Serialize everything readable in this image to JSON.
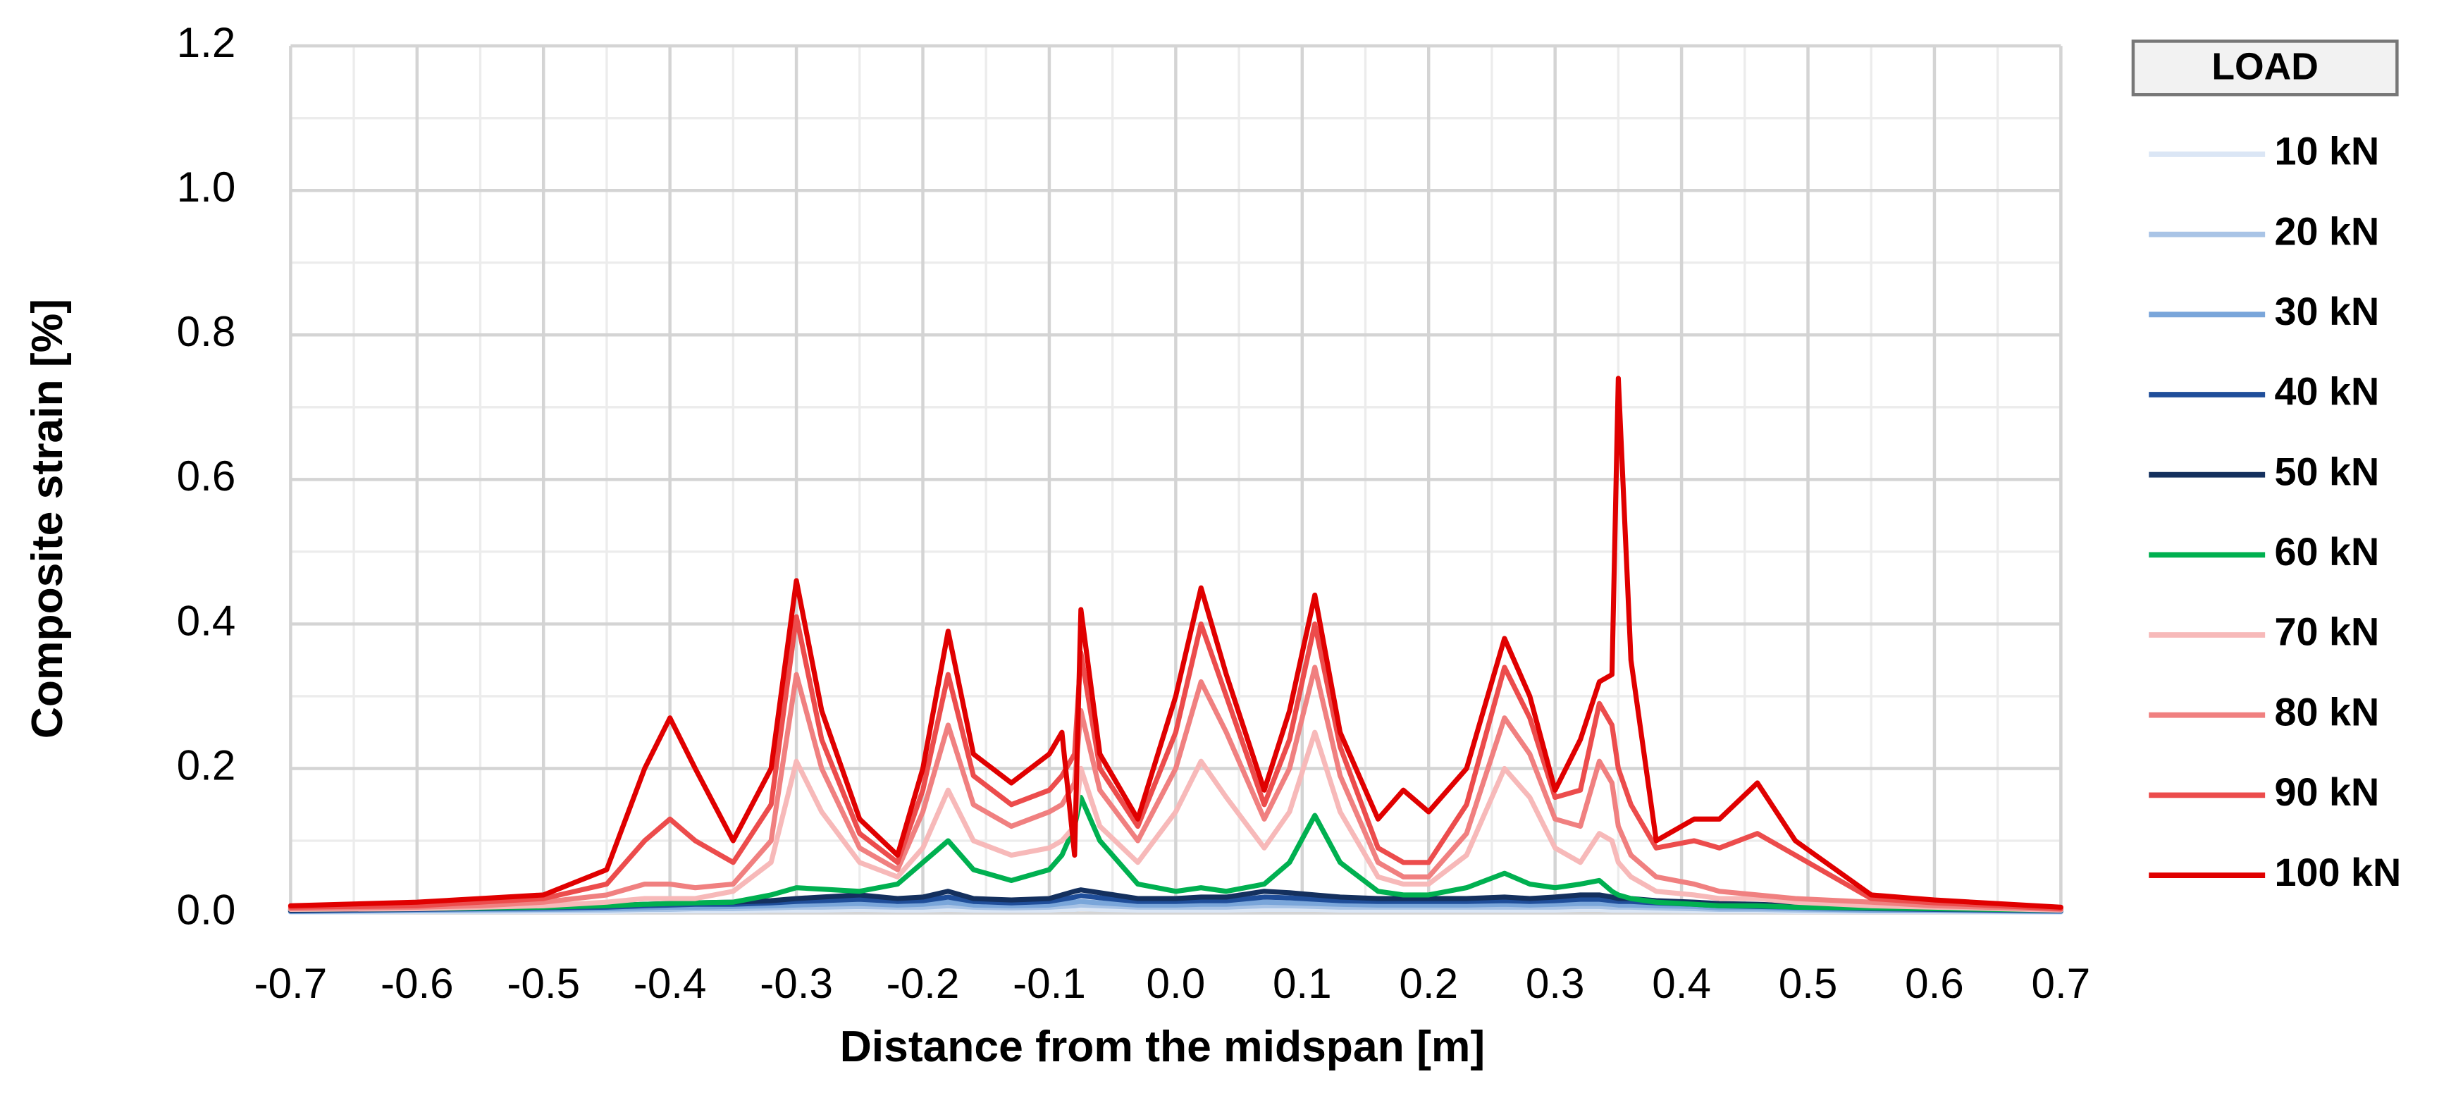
{
  "chart_data": {
    "type": "line",
    "x_label": "Distance from the midspan [m]",
    "y_label": "Composite strain [%]",
    "legend_title": "LOAD",
    "legend": "right",
    "grid": true,
    "xlim": [
      -0.7,
      0.7
    ],
    "ylim": [
      0,
      1.2
    ],
    "xticks": [
      -0.7,
      -0.6,
      -0.5,
      -0.4,
      -0.3,
      -0.2,
      -0.1,
      {
        "value": 0,
        "label": "0.0"
      },
      0.1,
      0.2,
      0.3,
      0.4,
      0.5,
      0.6,
      0.7
    ],
    "yticks": [
      {
        "value": 0,
        "label": "0.0"
      },
      0.2,
      0.4,
      0.6,
      0.8,
      {
        "value": 1,
        "label": "1.0"
      },
      1.2
    ],
    "x": [
      -0.7,
      -0.6,
      -0.55,
      -0.5,
      -0.45,
      -0.42,
      -0.4,
      -0.38,
      -0.35,
      -0.32,
      -0.3,
      -0.28,
      -0.25,
      -0.22,
      -0.2,
      -0.18,
      -0.16,
      -0.13,
      -0.1,
      -0.09,
      -0.08,
      -0.075,
      -0.06,
      -0.03,
      0,
      0.02,
      0.04,
      0.07,
      0.09,
      0.11,
      0.13,
      0.16,
      0.18,
      0.2,
      0.23,
      0.26,
      0.28,
      0.3,
      0.32,
      0.335,
      0.345,
      0.35,
      0.36,
      0.38,
      0.41,
      0.43,
      0.46,
      0.49,
      0.55,
      0.6,
      0.7
    ],
    "series": [
      {
        "name": "10 kN",
        "color": "#dbe6f5",
        "values": [
          0.001,
          0.002,
          0.002,
          0.002,
          0.002,
          0.003,
          0.003,
          0.003,
          0.003,
          0.004,
          0.004,
          0.004,
          0.005,
          0.004,
          0.004,
          0.005,
          0.004,
          0.004,
          0.004,
          0.005,
          0.005,
          0.006,
          0.005,
          0.004,
          0.004,
          0.004,
          0.004,
          0.005,
          0.005,
          0.005,
          0.004,
          0.004,
          0.004,
          0.004,
          0.004,
          0.004,
          0.004,
          0.004,
          0.005,
          0.005,
          0.004,
          0.004,
          0.004,
          0.004,
          0.003,
          0.003,
          0.003,
          0.002,
          0.002,
          0.002,
          0.001
        ]
      },
      {
        "name": "20 kN",
        "color": "#a9c4e6",
        "values": [
          0.002,
          0.003,
          0.003,
          0.004,
          0.004,
          0.005,
          0.005,
          0.006,
          0.006,
          0.007,
          0.008,
          0.008,
          0.009,
          0.008,
          0.008,
          0.01,
          0.008,
          0.007,
          0.008,
          0.009,
          0.01,
          0.011,
          0.01,
          0.008,
          0.008,
          0.008,
          0.008,
          0.01,
          0.01,
          0.009,
          0.008,
          0.008,
          0.008,
          0.008,
          0.008,
          0.008,
          0.008,
          0.008,
          0.009,
          0.009,
          0.008,
          0.008,
          0.008,
          0.007,
          0.006,
          0.005,
          0.005,
          0.004,
          0.003,
          0.003,
          0.002
        ]
      },
      {
        "name": "30 kN",
        "color": "#7aa6da",
        "values": [
          0.002,
          0.004,
          0.005,
          0.005,
          0.006,
          0.007,
          0.008,
          0.008,
          0.009,
          0.01,
          0.011,
          0.012,
          0.013,
          0.011,
          0.012,
          0.015,
          0.011,
          0.01,
          0.011,
          0.013,
          0.015,
          0.016,
          0.014,
          0.011,
          0.011,
          0.012,
          0.012,
          0.015,
          0.014,
          0.013,
          0.012,
          0.011,
          0.011,
          0.011,
          0.011,
          0.012,
          0.011,
          0.012,
          0.013,
          0.013,
          0.012,
          0.011,
          0.011,
          0.01,
          0.009,
          0.007,
          0.007,
          0.006,
          0.004,
          0.004,
          0.002
        ]
      },
      {
        "name": "40 kN",
        "color": "#1f4e9a",
        "values": [
          0.003,
          0.005,
          0.006,
          0.007,
          0.008,
          0.01,
          0.011,
          0.012,
          0.012,
          0.014,
          0.016,
          0.017,
          0.019,
          0.016,
          0.017,
          0.022,
          0.016,
          0.014,
          0.016,
          0.019,
          0.022,
          0.024,
          0.021,
          0.016,
          0.016,
          0.017,
          0.017,
          0.022,
          0.021,
          0.019,
          0.017,
          0.016,
          0.016,
          0.016,
          0.016,
          0.017,
          0.016,
          0.017,
          0.019,
          0.019,
          0.017,
          0.016,
          0.016,
          0.014,
          0.012,
          0.01,
          0.009,
          0.008,
          0.006,
          0.005,
          0.003
        ]
      },
      {
        "name": "50 kN",
        "color": "#14305e",
        "values": [
          0.004,
          0.006,
          0.007,
          0.008,
          0.01,
          0.012,
          0.013,
          0.014,
          0.015,
          0.017,
          0.02,
          0.022,
          0.025,
          0.02,
          0.022,
          0.03,
          0.02,
          0.018,
          0.02,
          0.025,
          0.03,
          0.032,
          0.028,
          0.02,
          0.02,
          0.022,
          0.022,
          0.03,
          0.028,
          0.025,
          0.022,
          0.02,
          0.02,
          0.02,
          0.02,
          0.022,
          0.02,
          0.022,
          0.025,
          0.025,
          0.022,
          0.02,
          0.02,
          0.017,
          0.015,
          0.013,
          0.012,
          0.01,
          0.007,
          0.006,
          0.004
        ]
      },
      {
        "name": "60 kN",
        "color": "#00b050",
        "values": [
          0.005,
          0.006,
          0.007,
          0.008,
          0.01,
          0.012,
          0.013,
          0.014,
          0.015,
          0.025,
          0.035,
          0.033,
          0.03,
          0.04,
          0.07,
          0.1,
          0.06,
          0.045,
          0.06,
          0.08,
          0.12,
          0.16,
          0.1,
          0.04,
          0.03,
          0.035,
          0.03,
          0.04,
          0.07,
          0.135,
          0.07,
          0.03,
          0.025,
          0.025,
          0.035,
          0.055,
          0.04,
          0.035,
          0.04,
          0.045,
          0.03,
          0.025,
          0.02,
          0.015,
          0.012,
          0.01,
          0.01,
          0.008,
          0.007,
          0.006,
          0.004
        ]
      },
      {
        "name": "70 kN",
        "color": "#f7b9b9",
        "values": [
          0.005,
          0.006,
          0.008,
          0.01,
          0.015,
          0.02,
          0.02,
          0.02,
          0.03,
          0.07,
          0.21,
          0.14,
          0.07,
          0.05,
          0.09,
          0.17,
          0.1,
          0.08,
          0.09,
          0.1,
          0.12,
          0.2,
          0.12,
          0.07,
          0.14,
          0.21,
          0.16,
          0.09,
          0.14,
          0.25,
          0.14,
          0.05,
          0.04,
          0.04,
          0.08,
          0.2,
          0.16,
          0.09,
          0.07,
          0.11,
          0.1,
          0.07,
          0.05,
          0.03,
          0.025,
          0.02,
          0.02,
          0.015,
          0.01,
          0.008,
          0.004
        ]
      },
      {
        "name": "80 kN",
        "color": "#f08080",
        "values": [
          0.006,
          0.008,
          0.01,
          0.015,
          0.025,
          0.04,
          0.04,
          0.035,
          0.04,
          0.1,
          0.33,
          0.2,
          0.09,
          0.06,
          0.14,
          0.26,
          0.15,
          0.12,
          0.14,
          0.15,
          0.18,
          0.28,
          0.17,
          0.1,
          0.2,
          0.32,
          0.25,
          0.13,
          0.2,
          0.34,
          0.19,
          0.07,
          0.05,
          0.05,
          0.11,
          0.27,
          0.22,
          0.13,
          0.12,
          0.21,
          0.18,
          0.12,
          0.08,
          0.05,
          0.04,
          0.03,
          0.025,
          0.02,
          0.015,
          0.01,
          0.005
        ]
      },
      {
        "name": "90 kN",
        "color": "#ec4c4c",
        "values": [
          0.008,
          0.01,
          0.015,
          0.02,
          0.04,
          0.1,
          0.13,
          0.1,
          0.07,
          0.15,
          0.41,
          0.24,
          0.11,
          0.07,
          0.17,
          0.33,
          0.19,
          0.15,
          0.17,
          0.19,
          0.22,
          0.36,
          0.2,
          0.12,
          0.25,
          0.4,
          0.3,
          0.15,
          0.24,
          0.4,
          0.23,
          0.09,
          0.07,
          0.07,
          0.15,
          0.34,
          0.27,
          0.16,
          0.17,
          0.29,
          0.26,
          0.2,
          0.15,
          0.09,
          0.1,
          0.09,
          0.11,
          0.08,
          0.02,
          0.014,
          0.006
        ]
      },
      {
        "name": "100 kN",
        "color": "#e00000",
        "values": [
          0.01,
          0.015,
          0.02,
          0.025,
          0.06,
          0.2,
          0.27,
          0.2,
          0.1,
          0.2,
          0.46,
          0.28,
          0.13,
          0.08,
          0.2,
          0.39,
          0.22,
          0.18,
          0.22,
          0.25,
          0.08,
          0.42,
          0.22,
          0.13,
          0.3,
          0.45,
          0.33,
          0.17,
          0.28,
          0.44,
          0.25,
          0.13,
          0.17,
          0.14,
          0.2,
          0.38,
          0.3,
          0.17,
          0.24,
          0.32,
          0.33,
          0.74,
          0.35,
          0.1,
          0.13,
          0.13,
          0.18,
          0.1,
          0.025,
          0.018,
          0.008
        ]
      }
    ]
  }
}
